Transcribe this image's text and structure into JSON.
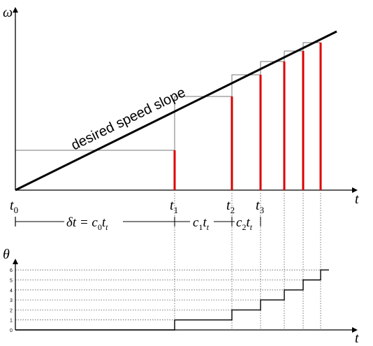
{
  "top_plot": {
    "y_axis_label": "ω",
    "x_axis_label": "t",
    "slope_label": "desired speed slope",
    "time_labels": [
      {
        "base": "t",
        "sub": "0"
      },
      {
        "base": "t",
        "sub": "1"
      },
      {
        "base": "t",
        "sub": "2"
      },
      {
        "base": "t",
        "sub": "3"
      }
    ],
    "interval_labels": [
      {
        "prefix": "δt = c",
        "sub1": "0",
        "mid": "t",
        "sub2": "t"
      },
      {
        "prefix": "c",
        "sub1": "1",
        "mid": "t",
        "sub2": "t"
      },
      {
        "prefix": "c",
        "sub1": "2",
        "mid": "t",
        "sub2": "t"
      }
    ]
  },
  "bottom_plot": {
    "y_axis_label": "θ",
    "x_axis_label": "t",
    "levels": [
      "0",
      "1",
      "2",
      "3",
      "4",
      "5",
      "6"
    ]
  },
  "colors": {
    "axis": "#000000",
    "impulse": "#dd0000",
    "guide": "#777777",
    "dotted": "#555555"
  }
}
